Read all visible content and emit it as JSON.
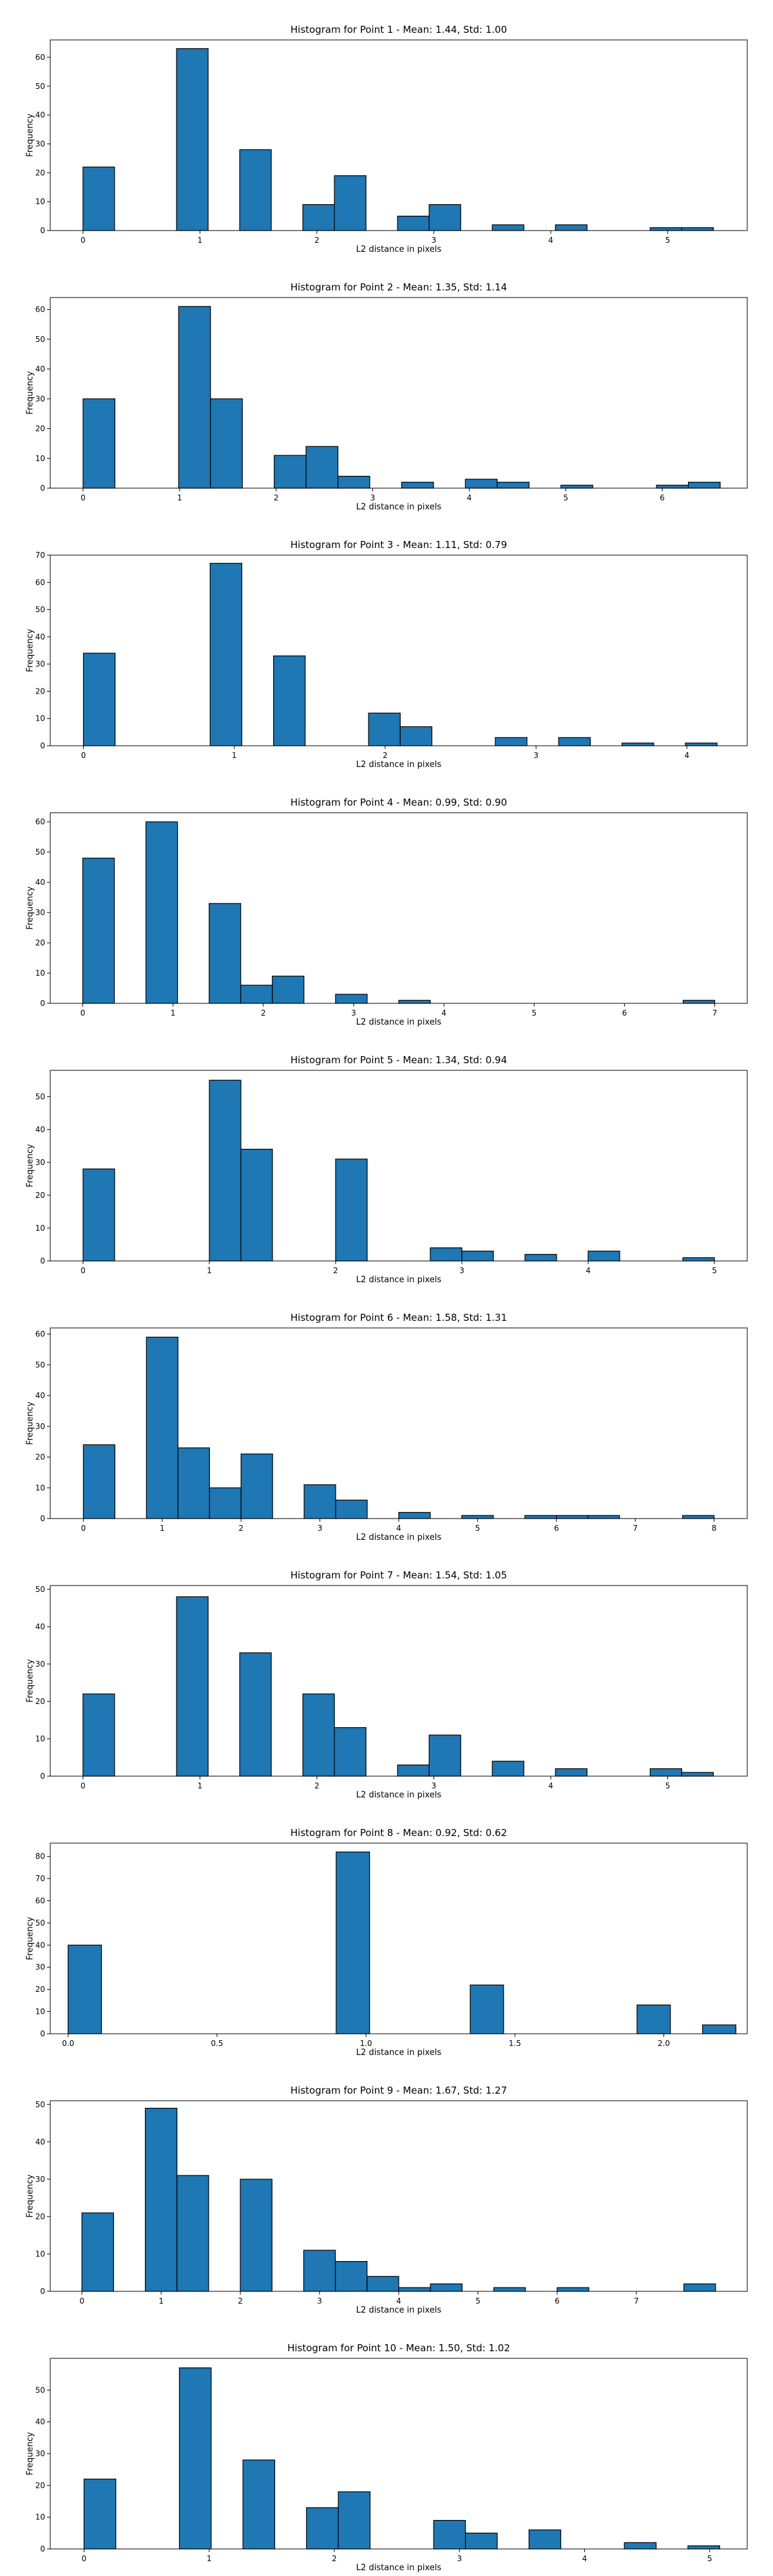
{
  "chart_data": [
    {
      "type": "bar",
      "title": "Histogram for Point 1 - Mean: 1.44, Std: 1.00",
      "xlabel": "L2 distance in pixels",
      "ylabel": "Frequency",
      "xlim": [
        -0.28,
        5.68
      ],
      "ylim": [
        0,
        66
      ],
      "xticks": [
        0,
        1,
        2,
        3,
        4,
        5
      ],
      "yticks": [
        0,
        10,
        20,
        30,
        40,
        50,
        60
      ],
      "bin_width": 0.27,
      "x": [
        0,
        0.8,
        1.34,
        1.88,
        2.15,
        2.69,
        2.96,
        3.5,
        4.04,
        4.85,
        5.12
      ],
      "values": [
        22,
        63,
        28,
        9,
        19,
        5,
        9,
        2,
        2,
        1,
        1
      ],
      "bar_color": "#1f77b4"
    },
    {
      "type": "bar",
      "title": "Histogram for Point 2 - Mean: 1.35, Std: 1.14",
      "xlabel": "L2 distance in pixels",
      "ylabel": "Frequency",
      "xlim": [
        -0.34,
        6.88
      ],
      "ylim": [
        0,
        64
      ],
      "xticks": [
        0,
        1,
        2,
        3,
        4,
        5,
        6
      ],
      "yticks": [
        0,
        10,
        20,
        30,
        40,
        50,
        60
      ],
      "bin_width": 0.33,
      "x": [
        0,
        0.99,
        1.32,
        1.98,
        2.31,
        2.64,
        3.3,
        3.96,
        4.29,
        4.95,
        5.94,
        6.27
      ],
      "values": [
        30,
        61,
        30,
        11,
        14,
        4,
        2,
        3,
        2,
        1,
        1,
        2
      ],
      "bar_color": "#1f77b4"
    },
    {
      "type": "bar",
      "title": "Histogram for Point 3 - Mean: 1.11, Std: 0.79",
      "xlabel": "L2 distance in pixels",
      "ylabel": "Frequency",
      "xlim": [
        -0.22,
        4.4
      ],
      "ylim": [
        0,
        70
      ],
      "xticks": [
        0,
        1,
        2,
        3,
        4
      ],
      "yticks": [
        0,
        10,
        20,
        30,
        40,
        50,
        60,
        70
      ],
      "bin_width": 0.21,
      "x": [
        0,
        0.84,
        1.26,
        1.89,
        2.1,
        2.73,
        3.15,
        3.57,
        3.99
      ],
      "values": [
        34,
        67,
        33,
        12,
        7,
        3,
        3,
        1,
        1
      ],
      "bar_color": "#1f77b4"
    },
    {
      "type": "bar",
      "title": "Histogram for Point 4 - Mean: 0.99, Std: 0.90",
      "xlabel": "L2 distance in pixels",
      "ylabel": "Frequency",
      "xlim": [
        -0.36,
        7.36
      ],
      "ylim": [
        0,
        63
      ],
      "xticks": [
        0,
        1,
        2,
        3,
        4,
        5,
        6,
        7
      ],
      "yticks": [
        0,
        10,
        20,
        30,
        40,
        50,
        60
      ],
      "bin_width": 0.35,
      "x": [
        0,
        0.7,
        1.4,
        1.75,
        2.1,
        2.8,
        3.5,
        6.65
      ],
      "values": [
        48,
        60,
        33,
        6,
        9,
        3,
        1,
        1
      ],
      "bar_color": "#1f77b4"
    },
    {
      "type": "bar",
      "title": "Histogram for Point 5 - Mean: 1.34, Std: 0.94",
      "xlabel": "L2 distance in pixels",
      "ylabel": "Frequency",
      "xlim": [
        -0.26,
        5.26
      ],
      "ylim": [
        0,
        58
      ],
      "xticks": [
        0,
        1,
        2,
        3,
        4,
        5
      ],
      "yticks": [
        0,
        10,
        20,
        30,
        40,
        50
      ],
      "bin_width": 0.25,
      "x": [
        0,
        1.0,
        1.25,
        2.0,
        2.75,
        3.0,
        3.5,
        4.0,
        4.75
      ],
      "values": [
        28,
        55,
        34,
        31,
        4,
        3,
        2,
        3,
        1
      ],
      "bar_color": "#1f77b4"
    },
    {
      "type": "bar",
      "title": "Histogram for Point 6 - Mean: 1.58, Std: 1.31",
      "xlabel": "L2 distance in pixels",
      "ylabel": "Frequency",
      "xlim": [
        -0.42,
        8.42
      ],
      "ylim": [
        0,
        62
      ],
      "xticks": [
        0,
        1,
        2,
        3,
        4,
        5,
        6,
        7,
        8
      ],
      "yticks": [
        0,
        10,
        20,
        30,
        40,
        50,
        60
      ],
      "bin_width": 0.4,
      "x": [
        0,
        0.8,
        1.2,
        1.6,
        2.0,
        2.8,
        3.2,
        4.0,
        4.8,
        5.6,
        6.0,
        6.4,
        7.6
      ],
      "values": [
        24,
        59,
        23,
        10,
        21,
        11,
        6,
        2,
        1,
        1,
        1,
        1,
        1
      ],
      "bar_color": "#1f77b4"
    },
    {
      "type": "bar",
      "title": "Histogram for Point 7 - Mean: 1.54, Std: 1.05",
      "xlabel": "L2 distance in pixels",
      "ylabel": "Frequency",
      "xlim": [
        -0.28,
        5.68
      ],
      "ylim": [
        0,
        51
      ],
      "xticks": [
        0,
        1,
        2,
        3,
        4,
        5
      ],
      "yticks": [
        0,
        10,
        20,
        30,
        40,
        50
      ],
      "bin_width": 0.27,
      "x": [
        0,
        0.8,
        1.34,
        1.88,
        2.15,
        2.69,
        2.96,
        3.5,
        4.04,
        4.85,
        5.12
      ],
      "values": [
        22,
        48,
        33,
        22,
        13,
        3,
        11,
        4,
        2,
        2,
        1
      ],
      "bar_color": "#1f77b4"
    },
    {
      "type": "bar",
      "title": "Histogram for Point 8 - Mean: 0.92, Std: 0.62",
      "xlabel": "L2 distance in pixels",
      "ylabel": "Frequency",
      "xlim": [
        -0.06,
        2.28
      ],
      "ylim": [
        0,
        86
      ],
      "xticks": [
        0.0,
        0.5,
        1.0,
        1.5,
        2.0
      ],
      "xtick_labels": [
        "0.0",
        "0.5",
        "1.0",
        "1.5",
        "2.0"
      ],
      "yticks": [
        0,
        10,
        20,
        30,
        40,
        50,
        60,
        70,
        80
      ],
      "bin_width": 0.112,
      "x": [
        0,
        0.9,
        1.35,
        1.91,
        2.13
      ],
      "values": [
        40,
        82,
        22,
        13,
        4
      ],
      "bar_color": "#1f77b4"
    },
    {
      "type": "bar",
      "title": "Histogram for Point 9 - Mean: 1.67, Std: 1.27",
      "xlabel": "L2 distance in pixels",
      "ylabel": "Frequency",
      "xlim": [
        -0.4,
        8.4
      ],
      "ylim": [
        0,
        51
      ],
      "xticks": [
        0,
        1,
        2,
        3,
        4,
        5,
        6,
        7
      ],
      "yticks": [
        0,
        10,
        20,
        30,
        40,
        50
      ],
      "bin_width": 0.4,
      "x": [
        0,
        0.8,
        1.2,
        2.0,
        2.8,
        3.2,
        3.6,
        4.0,
        4.4,
        5.2,
        6.0,
        7.6
      ],
      "values": [
        21,
        49,
        31,
        30,
        11,
        8,
        4,
        1,
        2,
        1,
        1,
        2
      ],
      "bar_color": "#1f77b4"
    },
    {
      "type": "bar",
      "title": "Histogram for Point 10 - Mean: 1.50, Std: 1.02",
      "xlabel": "L2 distance in pixels",
      "ylabel": "Frequency",
      "xlim": [
        -0.27,
        5.3
      ],
      "ylim": [
        0,
        60
      ],
      "xticks": [
        0,
        1,
        2,
        3,
        4,
        5
      ],
      "yticks": [
        0,
        10,
        20,
        30,
        40,
        50
      ],
      "bin_width": 0.254,
      "x": [
        0,
        0.762,
        1.27,
        1.778,
        2.032,
        2.794,
        3.048,
        3.556,
        4.318,
        4.826
      ],
      "values": [
        22,
        57,
        28,
        13,
        18,
        9,
        5,
        6,
        2,
        1
      ],
      "bar_color": "#1f77b4"
    }
  ]
}
